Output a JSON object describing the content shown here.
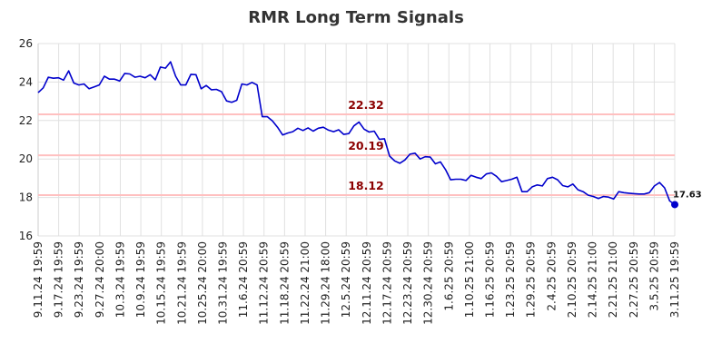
{
  "chart_data": {
    "type": "line",
    "title": "RMR Long Term Signals",
    "xlabel": "",
    "ylabel": "",
    "ylim": [
      16,
      26
    ],
    "y_ticks": [
      16,
      18,
      20,
      22,
      24,
      26
    ],
    "grid": true,
    "x_tick_labels": [
      "9.11.24 19:59",
      "9.17.24 19:59",
      "9.23.24 19:59",
      "9.27.24 20:00",
      "10.3.24 19:59",
      "10.9.24 19:59",
      "10.15.24 19:59",
      "10.21.24 19:59",
      "10.25.24 20:00",
      "10.31.24 19:59",
      "11.6.24 20:59",
      "11.12.24 20:59",
      "11.18.24 20:59",
      "11.22.24 21:00",
      "11.29.24 18:00",
      "12.5.24 20:59",
      "12.11.24 20:59",
      "12.17.24 20:59",
      "12.23.24 20:59",
      "12.30.24 20:59",
      "1.6.25 20:59",
      "1.10.25 21:00",
      "1.16.25 20:59",
      "1.23.25 20:59",
      "1.29.25 20:59",
      "2.4.25 20:59",
      "2.10.25 20:59",
      "2.14.25 21:00",
      "2.21.25 21:00",
      "2.27.25 20:59",
      "3.5.25 20:59",
      "3.11.25 19:59"
    ],
    "signal_lines": [
      {
        "label": "22.32",
        "value": 22.32,
        "color": "#ffc0c0"
      },
      {
        "label": "20.19",
        "value": 20.19,
        "color": "#ffc0c0"
      },
      {
        "label": "18.12",
        "value": 18.12,
        "color": "#ffc0c0"
      }
    ],
    "series": [
      {
        "color": "#0000cc",
        "values": [
          23.45,
          23.7,
          24.25,
          24.2,
          24.22,
          24.1,
          24.58,
          23.95,
          23.85,
          23.9,
          23.65,
          23.75,
          23.85,
          24.3,
          24.15,
          24.15,
          24.05,
          24.45,
          24.42,
          24.25,
          24.3,
          24.22,
          24.38,
          24.12,
          24.78,
          24.72,
          25.05,
          24.3,
          23.85,
          23.85,
          24.4,
          24.38,
          23.65,
          23.82,
          23.6,
          23.62,
          23.5,
          23.02,
          22.95,
          23.05,
          23.9,
          23.85,
          23.98,
          23.85,
          22.2,
          22.2,
          21.98,
          21.65,
          21.25,
          21.35,
          21.42,
          21.6,
          21.48,
          21.62,
          21.45,
          21.6,
          21.65,
          21.5,
          21.42,
          21.52,
          21.28,
          21.32,
          21.72,
          21.92,
          21.55,
          21.4,
          21.45,
          21.02,
          21.05,
          20.15,
          19.9,
          19.78,
          19.95,
          20.25,
          20.3,
          20.0,
          20.12,
          20.1,
          19.75,
          19.85,
          19.45,
          18.92,
          18.95,
          18.95,
          18.88,
          19.15,
          19.05,
          18.98,
          19.22,
          19.28,
          19.1,
          18.82,
          18.88,
          18.95,
          19.05,
          18.3,
          18.3,
          18.55,
          18.65,
          18.6,
          18.98,
          19.05,
          18.92,
          18.62,
          18.55,
          18.7,
          18.4,
          18.3,
          18.12,
          18.05,
          17.95,
          18.05,
          18.02,
          17.92,
          18.3,
          18.25,
          18.22,
          18.2,
          18.18,
          18.18,
          18.25,
          18.6,
          18.78,
          18.5,
          17.82,
          17.63
        ]
      }
    ],
    "last_value_label": "17.63"
  }
}
